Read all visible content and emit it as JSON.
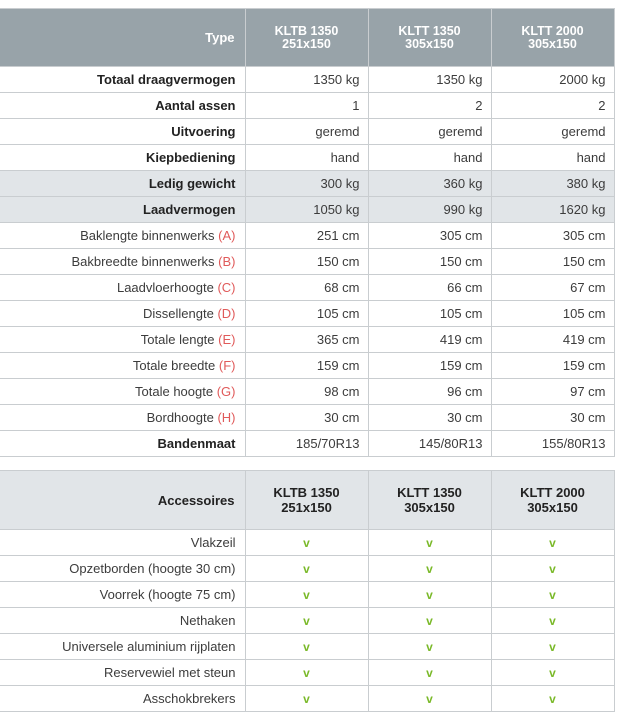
{
  "spec_table": {
    "header": {
      "label": "Type",
      "columns": [
        {
          "line1": "KLTB 1350",
          "line2": "251x150"
        },
        {
          "line1": "KLTT 1350",
          "line2": "305x150"
        },
        {
          "line1": "KLTT 2000",
          "line2": "305x150"
        }
      ]
    },
    "rows": [
      {
        "label": "Totaal draagvermogen",
        "letter": "",
        "values": [
          "1350 kg",
          "1350 kg",
          "2000 kg"
        ],
        "bold": true,
        "shaded": false
      },
      {
        "label": "Aantal assen",
        "letter": "",
        "values": [
          "1",
          "2",
          "2"
        ],
        "bold": true,
        "shaded": false
      },
      {
        "label": "Uitvoering",
        "letter": "",
        "values": [
          "geremd",
          "geremd",
          "geremd"
        ],
        "bold": true,
        "shaded": false
      },
      {
        "label": "Kiepbediening",
        "letter": "",
        "values": [
          "hand",
          "hand",
          "hand"
        ],
        "bold": true,
        "shaded": false
      },
      {
        "label": "Ledig gewicht",
        "letter": "",
        "values": [
          "300 kg",
          "360 kg",
          "380 kg"
        ],
        "bold": true,
        "shaded": true
      },
      {
        "label": "Laadvermogen",
        "letter": "",
        "values": [
          "1050 kg",
          "990 kg",
          "1620 kg"
        ],
        "bold": true,
        "shaded": true
      },
      {
        "label": "Baklengte binnenwerks",
        "letter": "(A)",
        "values": [
          "251 cm",
          "305 cm",
          "305 cm"
        ],
        "bold": false,
        "shaded": false
      },
      {
        "label": "Bakbreedte binnenwerks",
        "letter": "(B)",
        "values": [
          "150 cm",
          "150 cm",
          "150 cm"
        ],
        "bold": false,
        "shaded": false
      },
      {
        "label": "Laadvloerhoogte",
        "letter": "(C)",
        "values": [
          "68 cm",
          "66 cm",
          "67 cm"
        ],
        "bold": false,
        "shaded": false
      },
      {
        "label": "Dissellengte",
        "letter": "(D)",
        "values": [
          "105 cm",
          "105 cm",
          "105 cm"
        ],
        "bold": false,
        "shaded": false
      },
      {
        "label": "Totale lengte",
        "letter": "(E)",
        "values": [
          "365 cm",
          "419 cm",
          "419 cm"
        ],
        "bold": false,
        "shaded": false
      },
      {
        "label": "Totale breedte",
        "letter": "(F)",
        "values": [
          "159 cm",
          "159 cm",
          "159 cm"
        ],
        "bold": false,
        "shaded": false
      },
      {
        "label": "Totale hoogte",
        "letter": "(G)",
        "values": [
          "98 cm",
          "96 cm",
          "97 cm"
        ],
        "bold": false,
        "shaded": false
      },
      {
        "label": "Bordhoogte",
        "letter": "(H)",
        "values": [
          "30 cm",
          "30 cm",
          "30 cm"
        ],
        "bold": false,
        "shaded": false
      },
      {
        "label": "Bandenmaat",
        "letter": "",
        "values": [
          "185/70R13",
          "145/80R13",
          "155/80R13"
        ],
        "bold": true,
        "shaded": false
      }
    ]
  },
  "accessories_table": {
    "header": {
      "label": "Accessoires",
      "columns": [
        {
          "line1": "KLTB 1350",
          "line2": "251x150"
        },
        {
          "line1": "KLTT 1350",
          "line2": "305x150"
        },
        {
          "line1": "KLTT 2000",
          "line2": "305x150"
        }
      ]
    },
    "check_mark": "v",
    "rows": [
      {
        "label": "Vlakzeil",
        "values": [
          "v",
          "v",
          "v"
        ]
      },
      {
        "label": "Opzetborden (hoogte 30 cm)",
        "values": [
          "v",
          "v",
          "v"
        ]
      },
      {
        "label": "Voorrek (hoogte 75 cm)",
        "values": [
          "v",
          "v",
          "v"
        ]
      },
      {
        "label": "Nethaken",
        "values": [
          "v",
          "v",
          "v"
        ]
      },
      {
        "label": "Universele aluminium rijplaten",
        "values": [
          "v",
          "v",
          "v"
        ]
      },
      {
        "label": "Reservewiel met steun",
        "values": [
          "v",
          "v",
          "v"
        ]
      },
      {
        "label": "Asschokbrekers",
        "values": [
          "v",
          "v",
          "v"
        ]
      }
    ]
  },
  "colors": {
    "header_bg": "#98a3a9",
    "shaded_bg": "#e1e5e8",
    "letter_red": "#e05a5a",
    "check_green": "#7ab929"
  }
}
